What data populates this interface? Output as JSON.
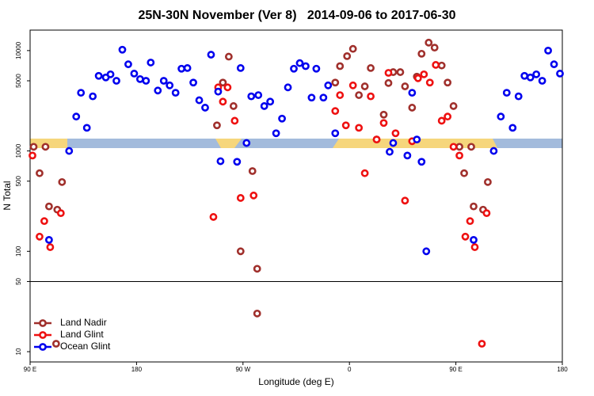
{
  "chart_data": {
    "type": "scatter",
    "title": "25N-30N November (Ver 8)   2014-09-06 to 2017-06-30",
    "x_label": "Longitude (deg E)",
    "y_label": "N Total",
    "log_y": true,
    "hline": 50,
    "legend": "lower left",
    "xlim": [
      90,
      540
    ],
    "ylim": [
      7.9,
      16000
    ],
    "xticks": [
      {
        "value": 90,
        "label": "90 E"
      },
      180,
      {
        "value": 270,
        "label": "90 W"
      },
      {
        "value": 360,
        "label": "0"
      },
      {
        "value": 450,
        "label": "90 E"
      },
      {
        "value": 540,
        "label": "180"
      }
    ],
    "yticks": [
      10,
      50,
      100,
      500,
      1000,
      5000,
      10000
    ],
    "series": [
      {
        "name": "Land Nadir",
        "color": "#a0302c",
        "x": [
          93,
          103,
          98,
          106,
          113,
          117,
          112,
          248,
          253,
          258,
          262,
          278,
          268,
          282,
          282,
          348,
          352,
          358,
          363,
          368,
          373,
          378,
          383,
          389,
          393,
          397,
          403,
          407,
          413,
          417,
          421,
          427,
          432,
          438,
          443,
          448,
          453,
          457,
          463,
          465,
          473,
          477
        ],
        "values": [
          1100,
          1100,
          600,
          280,
          260,
          490,
          12,
          1800,
          4800,
          8700,
          2800,
          630,
          100,
          67,
          24,
          4800,
          7000,
          8800,
          10400,
          3600,
          4400,
          6700,
          1300,
          2300,
          4750,
          6100,
          6100,
          4400,
          2700,
          5500,
          9300,
          12000,
          10700,
          7100,
          4800,
          2800,
          1100,
          600,
          1100,
          280,
          260,
          490
        ]
      },
      {
        "name": "Land Glint",
        "color": "#ee1111",
        "x": [
          92,
          98,
          102,
          107,
          116,
          245,
          249,
          253,
          257,
          263,
          268,
          279,
          348,
          352,
          357,
          363,
          368,
          373,
          378,
          383,
          389,
          393,
          399,
          407,
          413,
          418,
          423,
          428,
          433,
          438,
          443,
          448,
          453,
          458,
          462,
          466,
          476,
          472
        ],
        "values": [
          900,
          140,
          200,
          110,
          240,
          220,
          4300,
          3100,
          4300,
          2000,
          340,
          360,
          2500,
          3600,
          1800,
          4500,
          1700,
          600,
          3500,
          1300,
          1900,
          6000,
          1500,
          320,
          1250,
          5300,
          5800,
          4800,
          7200,
          2000,
          2200,
          1100,
          900,
          140,
          200,
          110,
          240,
          12
        ]
      },
      {
        "name": "Ocean Glint",
        "color": "#0000ee",
        "x": [
          106,
          123,
          129,
          133,
          138,
          143,
          148,
          154,
          158,
          163,
          168,
          173,
          178,
          183,
          188,
          192,
          198,
          203,
          208,
          213,
          218,
          223,
          228,
          233,
          238,
          243,
          249,
          251,
          265,
          268,
          273,
          277,
          283,
          288,
          293,
          298,
          303,
          308,
          313,
          318,
          323,
          328,
          332,
          338,
          342,
          348,
          394,
          397,
          409,
          413,
          417,
          421,
          425,
          465,
          482,
          488,
          493,
          498,
          503,
          508,
          513,
          518,
          523,
          528,
          533,
          538
        ],
        "values": [
          130,
          1000,
          2200,
          3800,
          1700,
          3500,
          5600,
          5400,
          5800,
          5000,
          10200,
          7300,
          5900,
          5200,
          5000,
          7600,
          4000,
          5000,
          4500,
          3800,
          6600,
          6700,
          4800,
          3200,
          2700,
          9100,
          3900,
          790,
          780,
          6700,
          1200,
          3500,
          3600,
          2800,
          3100,
          1500,
          2100,
          4300,
          6600,
          7500,
          7000,
          3400,
          6600,
          3400,
          4500,
          1500,
          980,
          1200,
          900,
          3800,
          1300,
          780,
          100,
          130,
          1000,
          2200,
          3800,
          1700,
          3500,
          5600,
          5400,
          5800,
          5000,
          10000,
          7300,
          5900
        ]
      }
    ]
  }
}
